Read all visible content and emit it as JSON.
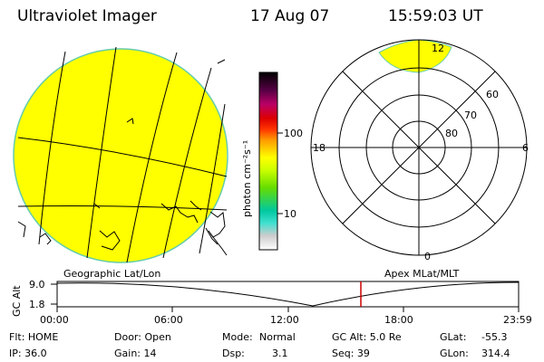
{
  "header": {
    "instrument": "Ultraviolet Imager",
    "date": "17 Aug 07",
    "time": "15:59:03 UT"
  },
  "colors": {
    "auroral_fill": "#ffff00",
    "image_edge": "#66ccaa",
    "time_marker": "#cc0000"
  },
  "colorbar": {
    "label": "photon cm⁻²s⁻¹",
    "ticks": [
      "100",
      "10"
    ],
    "scale": "log",
    "stops": [
      "#ffffff",
      "#c8c8c8",
      "#40e0d0",
      "#00c8a0",
      "#66dd00",
      "#ccff00",
      "#ffff00",
      "#ffcc00",
      "#ff9900",
      "#ff3300",
      "#dd0000",
      "#880044",
      "#440033",
      "#000000"
    ]
  },
  "polar_plot": {
    "mlt_labels": {
      "top": "12",
      "bottom": "0",
      "left": "18",
      "right": "6"
    },
    "lat_labels": [
      "60",
      "70",
      "80"
    ]
  },
  "orbit_panel": {
    "left_label": "Geographic Lat/Lon",
    "right_label": "Apex MLat/MLT",
    "y_axis_label": "GC Alt",
    "y_ticks": [
      "9.0",
      "1.8"
    ],
    "x_ticks": [
      "00:00",
      "06:00",
      "12:00",
      "18:00",
      "23:59"
    ]
  },
  "status": {
    "flt": "Flt: HOME",
    "door": "Door: Open",
    "mode_label": "Mode:",
    "mode_value": "Normal",
    "gc_alt": "GC Alt: 5.0 Re",
    "glat_label": "GLat:",
    "glat_value": "-55.3",
    "ip": "IP: 36.0",
    "gain": "Gain: 14",
    "dsp_label": "Dsp:",
    "dsp_value": "3.1",
    "seq": "Seq: 39",
    "glon_label": "GLon:",
    "glon_value": "314.4"
  }
}
